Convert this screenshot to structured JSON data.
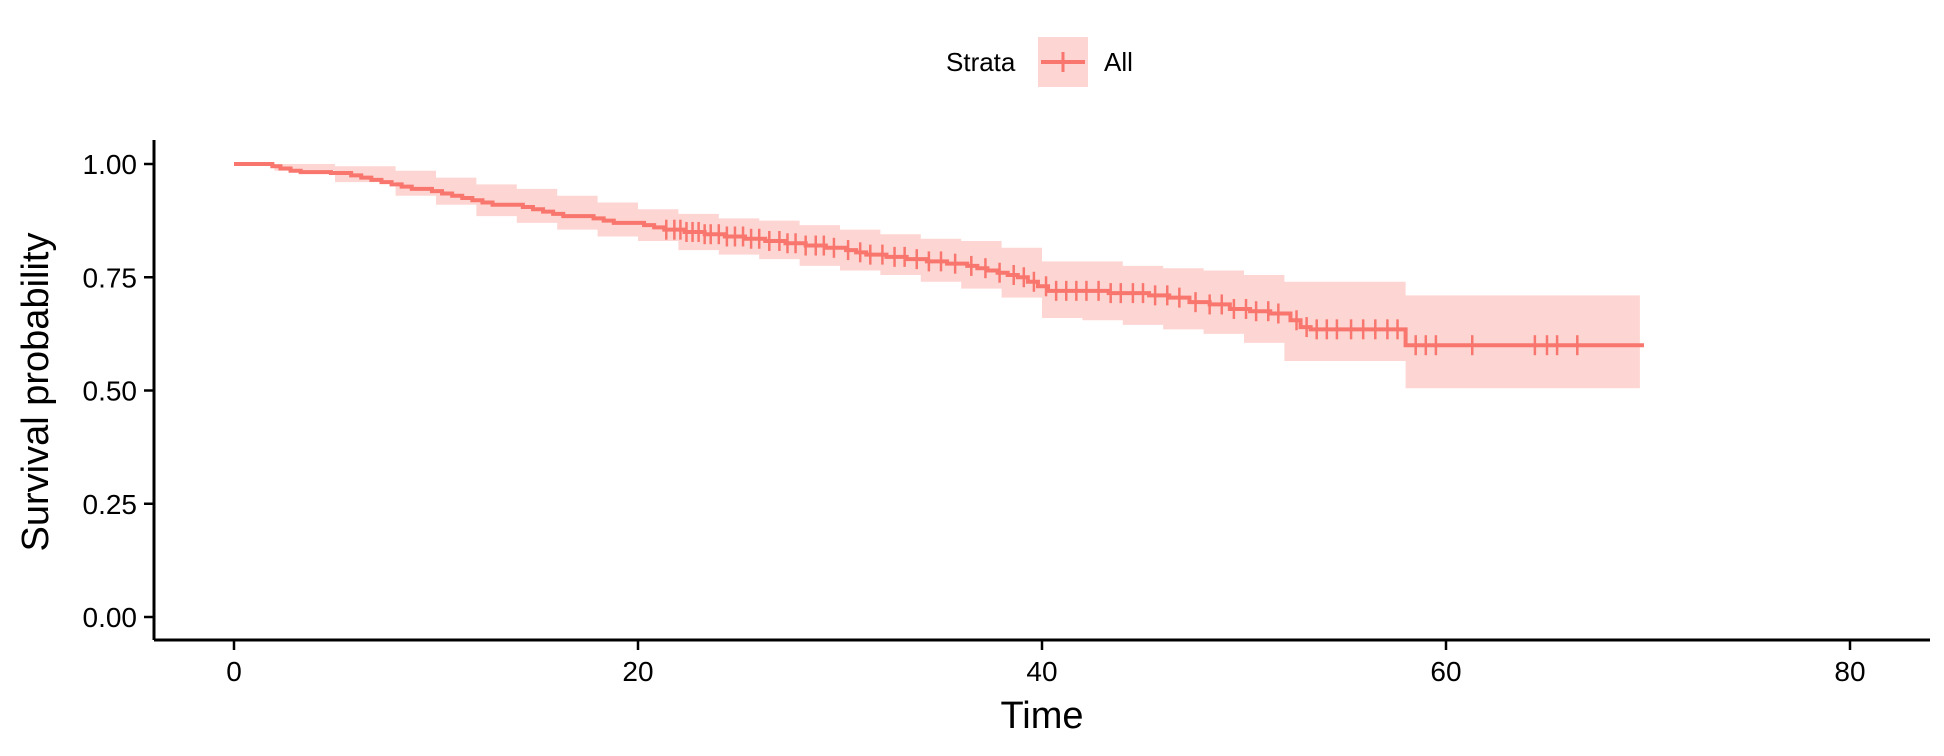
{
  "chart_data": {
    "type": "line",
    "subtype": "kaplan-meier",
    "xlabel": "Time",
    "ylabel": "Survival probability",
    "xlim": [
      -4,
      84
    ],
    "ylim": [
      -0.05,
      1.05
    ],
    "x_ticks": [
      0,
      20,
      40,
      60,
      80
    ],
    "x_tick_labels": [
      "0",
      "20",
      "40",
      "60",
      "80"
    ],
    "y_ticks": [
      0,
      0.25,
      0.5,
      0.75,
      1
    ],
    "y_tick_labels": [
      "0.00",
      "0.25",
      "0.50",
      "0.75",
      "1.00"
    ],
    "grid": false,
    "legend": {
      "position": "top",
      "title": "Strata",
      "entries": [
        "All"
      ]
    },
    "colors": {
      "line": "#f8766d",
      "ribbon": "#f8766d",
      "ribbon_opacity": 0.3
    },
    "series": [
      {
        "name": "All",
        "steps": [
          [
            0,
            1.0
          ],
          [
            1.9,
            0.995
          ],
          [
            2.3,
            0.99
          ],
          [
            2.8,
            0.985
          ],
          [
            3.3,
            0.982
          ],
          [
            4.8,
            0.98
          ],
          [
            5.8,
            0.975
          ],
          [
            6.3,
            0.97
          ],
          [
            6.8,
            0.965
          ],
          [
            7.3,
            0.96
          ],
          [
            7.8,
            0.955
          ],
          [
            8.3,
            0.95
          ],
          [
            8.8,
            0.945
          ],
          [
            9.8,
            0.94
          ],
          [
            10.3,
            0.935
          ],
          [
            10.8,
            0.93
          ],
          [
            11.3,
            0.925
          ],
          [
            11.8,
            0.92
          ],
          [
            12.3,
            0.915
          ],
          [
            12.8,
            0.91
          ],
          [
            14.3,
            0.905
          ],
          [
            14.8,
            0.9
          ],
          [
            15.3,
            0.895
          ],
          [
            15.8,
            0.89
          ],
          [
            16.3,
            0.885
          ],
          [
            17.8,
            0.88
          ],
          [
            18.3,
            0.875
          ],
          [
            18.8,
            0.87
          ],
          [
            20.3,
            0.865
          ],
          [
            20.8,
            0.86
          ],
          [
            21.3,
            0.855
          ],
          [
            22.3,
            0.85
          ],
          [
            23.3,
            0.845
          ],
          [
            24.3,
            0.84
          ],
          [
            25.3,
            0.835
          ],
          [
            26.3,
            0.83
          ],
          [
            27.3,
            0.825
          ],
          [
            28.3,
            0.82
          ],
          [
            29.3,
            0.815
          ],
          [
            30.3,
            0.81
          ],
          [
            30.8,
            0.805
          ],
          [
            31.3,
            0.8
          ],
          [
            32.3,
            0.795
          ],
          [
            33.3,
            0.79
          ],
          [
            34.3,
            0.785
          ],
          [
            35.3,
            0.78
          ],
          [
            36.3,
            0.775
          ],
          [
            36.8,
            0.77
          ],
          [
            37.3,
            0.765
          ],
          [
            37.8,
            0.76
          ],
          [
            38.3,
            0.755
          ],
          [
            38.8,
            0.75
          ],
          [
            39.3,
            0.74
          ],
          [
            39.8,
            0.73
          ],
          [
            40.3,
            0.72
          ],
          [
            43.3,
            0.715
          ],
          [
            45.3,
            0.71
          ],
          [
            46.3,
            0.705
          ],
          [
            47.3,
            0.695
          ],
          [
            48.3,
            0.69
          ],
          [
            49.3,
            0.68
          ],
          [
            50.3,
            0.675
          ],
          [
            51.3,
            0.67
          ],
          [
            52.3,
            0.655
          ],
          [
            52.8,
            0.64
          ],
          [
            53.3,
            0.635
          ],
          [
            58.0,
            0.6
          ],
          [
            69.8,
            0.6
          ]
        ],
        "lower": [
          [
            0,
            1.0
          ],
          [
            2,
            0.985
          ],
          [
            5,
            0.96
          ],
          [
            8,
            0.93
          ],
          [
            10,
            0.91
          ],
          [
            12,
            0.885
          ],
          [
            14,
            0.87
          ],
          [
            16,
            0.855
          ],
          [
            18,
            0.84
          ],
          [
            20,
            0.83
          ],
          [
            22,
            0.81
          ],
          [
            24,
            0.8
          ],
          [
            26,
            0.79
          ],
          [
            28,
            0.775
          ],
          [
            30,
            0.765
          ],
          [
            32,
            0.755
          ],
          [
            34,
            0.74
          ],
          [
            36,
            0.725
          ],
          [
            38,
            0.705
          ],
          [
            40,
            0.66
          ],
          [
            42,
            0.655
          ],
          [
            44,
            0.645
          ],
          [
            46,
            0.635
          ],
          [
            48,
            0.625
          ],
          [
            50,
            0.605
          ],
          [
            52,
            0.565
          ],
          [
            58,
            0.505
          ],
          [
            69.6,
            0.505
          ]
        ],
        "upper": [
          [
            0,
            1.0
          ],
          [
            2,
            1.0
          ],
          [
            5,
            0.995
          ],
          [
            8,
            0.985
          ],
          [
            10,
            0.97
          ],
          [
            12,
            0.955
          ],
          [
            14,
            0.945
          ],
          [
            16,
            0.93
          ],
          [
            18,
            0.915
          ],
          [
            20,
            0.9
          ],
          [
            22,
            0.89
          ],
          [
            24,
            0.88
          ],
          [
            26,
            0.875
          ],
          [
            28,
            0.865
          ],
          [
            30,
            0.855
          ],
          [
            32,
            0.845
          ],
          [
            34,
            0.835
          ],
          [
            36,
            0.83
          ],
          [
            38,
            0.815
          ],
          [
            40,
            0.785
          ],
          [
            42,
            0.785
          ],
          [
            44,
            0.775
          ],
          [
            46,
            0.77
          ],
          [
            48,
            0.765
          ],
          [
            50,
            0.755
          ],
          [
            52,
            0.74
          ],
          [
            58,
            0.71
          ],
          [
            69.6,
            0.71
          ]
        ],
        "censor_times": [
          21.4,
          21.8,
          22.1,
          22.4,
          22.7,
          23.0,
          23.3,
          23.6,
          24.0,
          24.4,
          24.8,
          25.2,
          25.6,
          26.0,
          26.5,
          27.0,
          27.4,
          27.8,
          28.3,
          28.8,
          29.2,
          29.7,
          30.4,
          31.0,
          31.5,
          32.1,
          32.7,
          33.2,
          33.8,
          34.4,
          35.0,
          35.7,
          36.5,
          37.2,
          37.9,
          38.6,
          39.1,
          39.6,
          40.2,
          40.7,
          41.2,
          41.7,
          42.2,
          42.8,
          43.4,
          43.9,
          44.5,
          45.0,
          45.6,
          46.2,
          46.8,
          47.6,
          48.3,
          48.9,
          49.5,
          50.1,
          50.6,
          51.2,
          51.7,
          52.6,
          53.1,
          53.6,
          54.1,
          54.6,
          55.3,
          55.9,
          56.5,
          57.1,
          57.6,
          58.5,
          59.0,
          59.5,
          61.3,
          64.4,
          65.0,
          65.5,
          66.5
        ]
      }
    ]
  }
}
